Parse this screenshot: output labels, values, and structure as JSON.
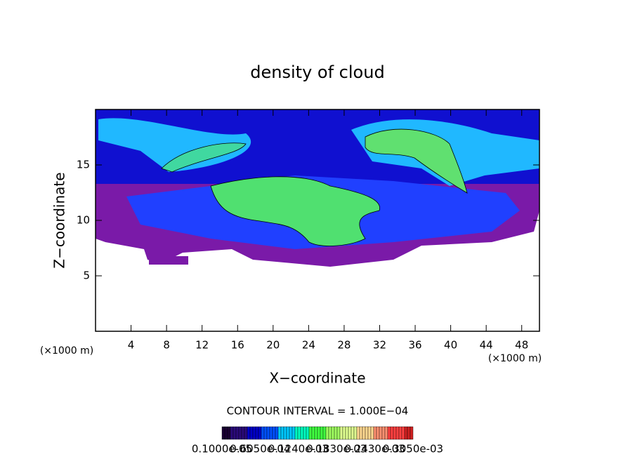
{
  "chart_data": {
    "type": "contour",
    "title": "density of cloud",
    "xlabel": "X−coordinate",
    "ylabel": "Z−coordinate",
    "xunit_left": "(×1000 m)",
    "xunit_right": "(×1000 m)",
    "contour_interval": "CONTOUR INTERVAL = 1.000E−04",
    "xlim": [
      0,
      50
    ],
    "ylim": [
      0,
      20
    ],
    "xticks": [
      4,
      8,
      12,
      16,
      20,
      24,
      28,
      32,
      36,
      40,
      44,
      48
    ],
    "yticks": [
      5,
      10,
      15
    ],
    "colorbar_colors": [
      "#1a0033",
      "#2a0a7a",
      "#0000c8",
      "#0050ff",
      "#00c8ff",
      "#00ffc0",
      "#40ff40",
      "#a0ff60",
      "#e0ff90",
      "#ffd890",
      "#ff9070",
      "#ff4040",
      "#d02020"
    ],
    "colorbar_labels": [
      "0.1000e-05",
      "0.6050e-04",
      "0.1240e-03",
      "0.1830e-03",
      "0.2430e-03",
      "0.3050e-03"
    ]
  }
}
